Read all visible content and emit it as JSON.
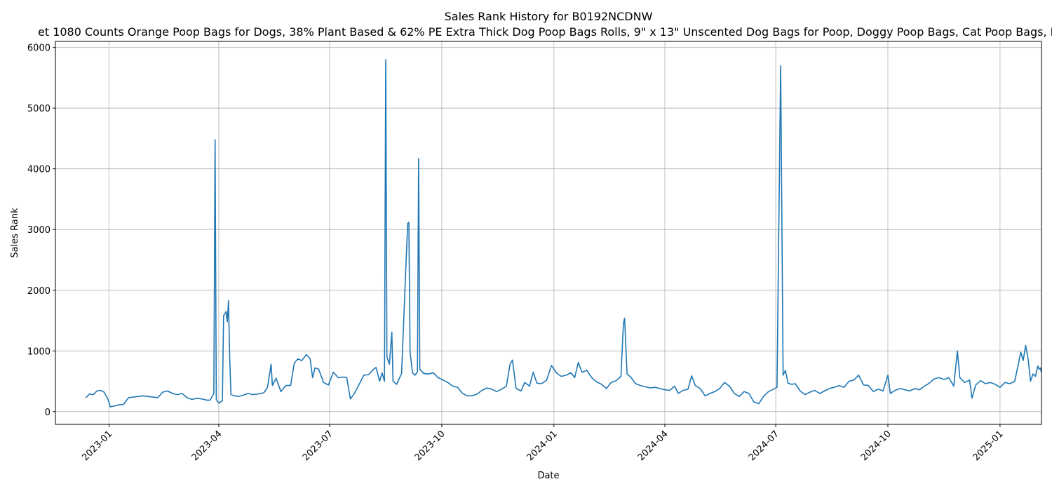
{
  "chart_data": {
    "type": "line",
    "title": "Sales Rank History for B0192NCDNW",
    "subtitle": "et 1080 Counts Orange Poop Bags for Dogs, 38% Plant Based & 62% PE Extra Thick Dog Poop Bags Rolls, 9\" x 13\" Unscented Dog Bags for Poop, Doggy Poop Bags, Cat Poop Bags, D",
    "xlabel": "Date",
    "ylabel": "Sales Rank",
    "grid": true,
    "line_color": "#1f77b4",
    "xlim": [
      "2022-11-18",
      "2025-02-04"
    ],
    "ylim": [
      -210,
      6100
    ],
    "x_ticks": [
      "2023-01",
      "2023-04",
      "2023-07",
      "2023-10",
      "2024-01",
      "2024-04",
      "2024-07",
      "2024-10",
      "2025-01"
    ],
    "x_tick_dates": [
      "2023-01-01",
      "2023-04-01",
      "2023-07-01",
      "2023-10-01",
      "2024-01-01",
      "2024-04-01",
      "2024-07-01",
      "2024-10-01",
      "2025-01-01"
    ],
    "y_ticks": [
      0,
      1000,
      2000,
      3000,
      4000,
      5000,
      6000
    ],
    "series": [
      {
        "values": [
          [
            "2022-12-13",
            230
          ],
          [
            "2022-12-16",
            290
          ],
          [
            "2022-12-19",
            280
          ],
          [
            "2022-12-22",
            340
          ],
          [
            "2022-12-25",
            350
          ],
          [
            "2022-12-28",
            320
          ],
          [
            "2022-12-31",
            210
          ],
          [
            "2023-01-02",
            80
          ],
          [
            "2023-01-05",
            90
          ],
          [
            "2023-01-09",
            110
          ],
          [
            "2023-01-13",
            120
          ],
          [
            "2023-01-17",
            230
          ],
          [
            "2023-01-21",
            240
          ],
          [
            "2023-01-25",
            250
          ],
          [
            "2023-01-29",
            260
          ],
          [
            "2023-02-02",
            250
          ],
          [
            "2023-02-06",
            240
          ],
          [
            "2023-02-10",
            230
          ],
          [
            "2023-02-14",
            320
          ],
          [
            "2023-02-18",
            340
          ],
          [
            "2023-02-22",
            300
          ],
          [
            "2023-02-26",
            280
          ],
          [
            "2023-03-02",
            300
          ],
          [
            "2023-03-06",
            230
          ],
          [
            "2023-03-10",
            200
          ],
          [
            "2023-03-14",
            220
          ],
          [
            "2023-03-18",
            210
          ],
          [
            "2023-03-22",
            190
          ],
          [
            "2023-03-25",
            190
          ],
          [
            "2023-03-28",
            300
          ],
          [
            "2023-03-29",
            4480
          ],
          [
            "2023-03-30",
            200
          ],
          [
            "2023-04-01",
            140
          ],
          [
            "2023-04-04",
            180
          ],
          [
            "2023-04-05",
            1580
          ],
          [
            "2023-04-07",
            1650
          ],
          [
            "2023-04-08",
            1480
          ],
          [
            "2023-04-09",
            1830
          ],
          [
            "2023-04-10",
            900
          ],
          [
            "2023-04-11",
            280
          ],
          [
            "2023-04-14",
            260
          ],
          [
            "2023-04-17",
            250
          ],
          [
            "2023-04-21",
            270
          ],
          [
            "2023-04-25",
            300
          ],
          [
            "2023-04-29",
            280
          ],
          [
            "2023-05-03",
            290
          ],
          [
            "2023-05-08",
            310
          ],
          [
            "2023-05-11",
            400
          ],
          [
            "2023-05-14",
            780
          ],
          [
            "2023-05-15",
            430
          ],
          [
            "2023-05-18",
            550
          ],
          [
            "2023-05-22",
            330
          ],
          [
            "2023-05-26",
            430
          ],
          [
            "2023-05-30",
            430
          ],
          [
            "2023-06-02",
            800
          ],
          [
            "2023-06-05",
            870
          ],
          [
            "2023-06-08",
            840
          ],
          [
            "2023-06-12",
            940
          ],
          [
            "2023-06-15",
            870
          ],
          [
            "2023-06-17",
            560
          ],
          [
            "2023-06-19",
            720
          ],
          [
            "2023-06-22",
            700
          ],
          [
            "2023-06-26",
            480
          ],
          [
            "2023-06-30",
            440
          ],
          [
            "2023-07-04",
            650
          ],
          [
            "2023-07-08",
            560
          ],
          [
            "2023-07-12",
            570
          ],
          [
            "2023-07-15",
            560
          ],
          [
            "2023-07-18",
            210
          ],
          [
            "2023-07-21",
            290
          ],
          [
            "2023-07-25",
            440
          ],
          [
            "2023-07-29",
            600
          ],
          [
            "2023-08-02",
            610
          ],
          [
            "2023-08-05",
            680
          ],
          [
            "2023-08-08",
            730
          ],
          [
            "2023-08-11",
            500
          ],
          [
            "2023-08-13",
            640
          ],
          [
            "2023-08-15",
            500
          ],
          [
            "2023-08-16",
            5800
          ],
          [
            "2023-08-17",
            900
          ],
          [
            "2023-08-19",
            780
          ],
          [
            "2023-08-21",
            1310
          ],
          [
            "2023-08-22",
            500
          ],
          [
            "2023-08-25",
            450
          ],
          [
            "2023-08-29",
            630
          ],
          [
            "2023-09-02",
            2600
          ],
          [
            "2023-09-03",
            3100
          ],
          [
            "2023-09-04",
            3120
          ],
          [
            "2023-09-05",
            980
          ],
          [
            "2023-09-07",
            640
          ],
          [
            "2023-09-09",
            600
          ],
          [
            "2023-09-11",
            650
          ],
          [
            "2023-09-12",
            4170
          ],
          [
            "2023-09-13",
            700
          ],
          [
            "2023-09-16",
            630
          ],
          [
            "2023-09-20",
            620
          ],
          [
            "2023-09-24",
            640
          ],
          [
            "2023-09-28",
            560
          ],
          [
            "2023-10-02",
            520
          ],
          [
            "2023-10-06",
            480
          ],
          [
            "2023-10-10",
            420
          ],
          [
            "2023-10-14",
            400
          ],
          [
            "2023-10-18",
            300
          ],
          [
            "2023-10-22",
            260
          ],
          [
            "2023-10-26",
            260
          ],
          [
            "2023-10-30",
            290
          ],
          [
            "2023-11-03",
            350
          ],
          [
            "2023-11-07",
            390
          ],
          [
            "2023-11-11",
            370
          ],
          [
            "2023-11-15",
            330
          ],
          [
            "2023-11-19",
            370
          ],
          [
            "2023-11-23",
            420
          ],
          [
            "2023-11-26",
            780
          ],
          [
            "2023-11-28",
            850
          ],
          [
            "2023-12-01",
            380
          ],
          [
            "2023-12-05",
            340
          ],
          [
            "2023-12-08",
            480
          ],
          [
            "2023-12-12",
            420
          ],
          [
            "2023-12-15",
            650
          ],
          [
            "2023-12-18",
            470
          ],
          [
            "2023-12-22",
            460
          ],
          [
            "2023-12-26",
            520
          ],
          [
            "2023-12-30",
            760
          ],
          [
            "2024-01-03",
            640
          ],
          [
            "2024-01-07",
            580
          ],
          [
            "2024-01-11",
            600
          ],
          [
            "2024-01-15",
            640
          ],
          [
            "2024-01-18",
            560
          ],
          [
            "2024-01-21",
            810
          ],
          [
            "2024-01-24",
            650
          ],
          [
            "2024-01-28",
            680
          ],
          [
            "2024-02-01",
            560
          ],
          [
            "2024-02-05",
            490
          ],
          [
            "2024-02-09",
            450
          ],
          [
            "2024-02-13",
            380
          ],
          [
            "2024-02-17",
            480
          ],
          [
            "2024-02-21",
            510
          ],
          [
            "2024-02-25",
            580
          ],
          [
            "2024-02-27",
            1450
          ],
          [
            "2024-02-28",
            1540
          ],
          [
            "2024-03-01",
            620
          ],
          [
            "2024-03-04",
            570
          ],
          [
            "2024-03-08",
            460
          ],
          [
            "2024-03-12",
            430
          ],
          [
            "2024-03-16",
            410
          ],
          [
            "2024-03-20",
            390
          ],
          [
            "2024-03-24",
            400
          ],
          [
            "2024-03-28",
            380
          ],
          [
            "2024-04-01",
            360
          ],
          [
            "2024-04-05",
            350
          ],
          [
            "2024-04-09",
            420
          ],
          [
            "2024-04-12",
            300
          ],
          [
            "2024-04-16",
            350
          ],
          [
            "2024-04-20",
            370
          ],
          [
            "2024-04-23",
            590
          ],
          [
            "2024-04-26",
            430
          ],
          [
            "2024-04-30",
            380
          ],
          [
            "2024-05-04",
            260
          ],
          [
            "2024-05-08",
            300
          ],
          [
            "2024-05-12",
            330
          ],
          [
            "2024-05-16",
            380
          ],
          [
            "2024-05-20",
            480
          ],
          [
            "2024-05-24",
            420
          ],
          [
            "2024-05-28",
            300
          ],
          [
            "2024-06-01",
            250
          ],
          [
            "2024-06-05",
            330
          ],
          [
            "2024-06-09",
            300
          ],
          [
            "2024-06-13",
            160
          ],
          [
            "2024-06-17",
            130
          ],
          [
            "2024-06-21",
            250
          ],
          [
            "2024-06-25",
            330
          ],
          [
            "2024-06-29",
            370
          ],
          [
            "2024-07-02",
            400
          ],
          [
            "2024-07-05",
            5700
          ],
          [
            "2024-07-07",
            600
          ],
          [
            "2024-07-09",
            680
          ],
          [
            "2024-07-11",
            470
          ],
          [
            "2024-07-14",
            450
          ],
          [
            "2024-07-17",
            460
          ],
          [
            "2024-07-21",
            340
          ],
          [
            "2024-07-25",
            280
          ],
          [
            "2024-07-29",
            320
          ],
          [
            "2024-08-02",
            350
          ],
          [
            "2024-08-06",
            300
          ],
          [
            "2024-08-10",
            340
          ],
          [
            "2024-08-14",
            380
          ],
          [
            "2024-08-18",
            400
          ],
          [
            "2024-08-22",
            430
          ],
          [
            "2024-08-26",
            400
          ],
          [
            "2024-08-30",
            500
          ],
          [
            "2024-09-03",
            520
          ],
          [
            "2024-09-07",
            600
          ],
          [
            "2024-09-11",
            440
          ],
          [
            "2024-09-15",
            430
          ],
          [
            "2024-09-19",
            330
          ],
          [
            "2024-09-23",
            370
          ],
          [
            "2024-09-27",
            340
          ],
          [
            "2024-10-01",
            600
          ],
          [
            "2024-10-03",
            300
          ],
          [
            "2024-10-07",
            350
          ],
          [
            "2024-10-11",
            380
          ],
          [
            "2024-10-15",
            360
          ],
          [
            "2024-10-19",
            340
          ],
          [
            "2024-10-23",
            380
          ],
          [
            "2024-10-27",
            360
          ],
          [
            "2024-10-31",
            420
          ],
          [
            "2024-11-04",
            470
          ],
          [
            "2024-11-08",
            540
          ],
          [
            "2024-11-12",
            560
          ],
          [
            "2024-11-16",
            530
          ],
          [
            "2024-11-20",
            560
          ],
          [
            "2024-11-24",
            420
          ],
          [
            "2024-11-27",
            1000
          ],
          [
            "2024-11-29",
            560
          ],
          [
            "2024-12-03",
            480
          ],
          [
            "2024-12-07",
            520
          ],
          [
            "2024-12-09",
            220
          ],
          [
            "2024-12-12",
            440
          ],
          [
            "2024-12-16",
            510
          ],
          [
            "2024-12-20",
            460
          ],
          [
            "2024-12-24",
            480
          ],
          [
            "2024-12-28",
            450
          ],
          [
            "2025-01-01",
            400
          ],
          [
            "2025-01-05",
            480
          ],
          [
            "2025-01-09",
            460
          ],
          [
            "2025-01-13",
            500
          ],
          [
            "2025-01-16",
            780
          ],
          [
            "2025-01-18",
            980
          ],
          [
            "2025-01-20",
            840
          ],
          [
            "2025-01-22",
            1090
          ],
          [
            "2025-01-24",
            870
          ],
          [
            "2025-01-26",
            500
          ],
          [
            "2025-01-28",
            620
          ],
          [
            "2025-01-30",
            580
          ],
          [
            "2025-02-01",
            750
          ],
          [
            "2025-02-02",
            700
          ],
          [
            "2025-02-03",
            720
          ],
          [
            "2025-02-04",
            640
          ]
        ]
      }
    ]
  }
}
